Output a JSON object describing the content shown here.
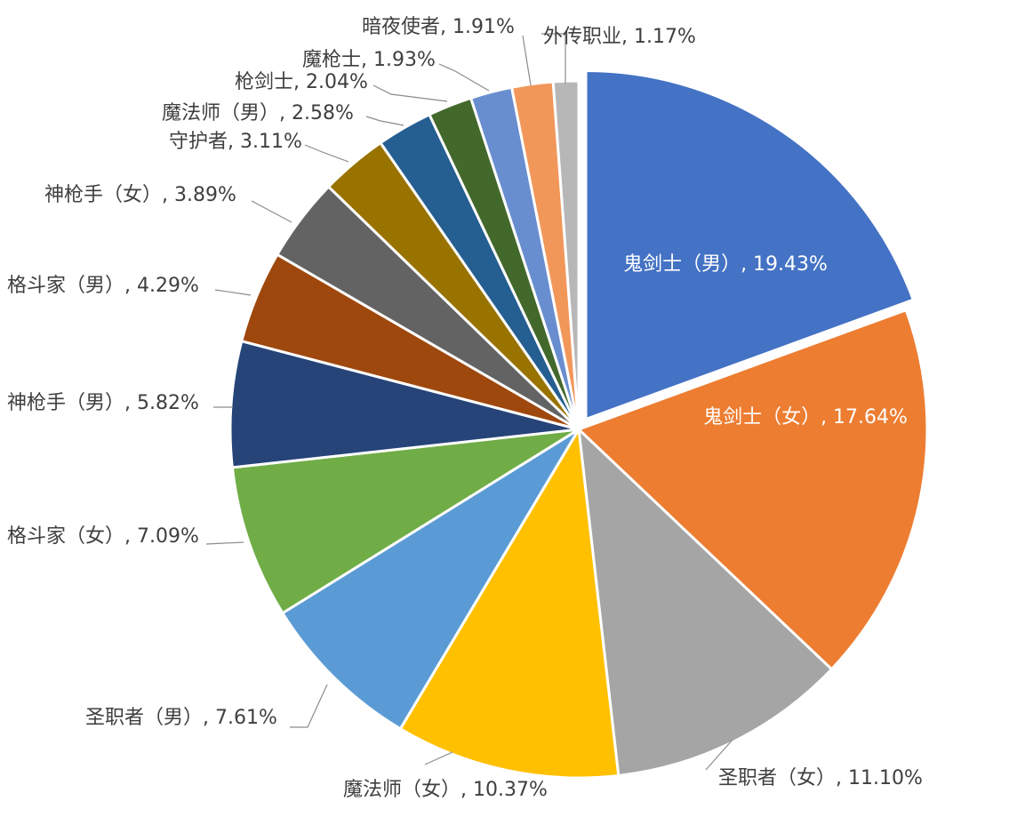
{
  "chart_data": {
    "type": "pie",
    "title": "",
    "legend": "none",
    "slices": [
      {
        "name": "鬼剑士（男）",
        "value": 19.43,
        "label": "鬼剑士（男）, 19.43%",
        "color": "#4472C4",
        "exploded": true,
        "label_inside": true
      },
      {
        "name": "鬼剑士（女）",
        "value": 17.64,
        "label": "鬼剑士（女）, 17.64%",
        "color": "#ED7D31",
        "label_inside": true
      },
      {
        "name": "圣职者（女）",
        "value": 11.1,
        "label": "圣职者（女）, 11.10%",
        "color": "#A5A5A5"
      },
      {
        "name": "魔法师（女）",
        "value": 10.37,
        "label": "魔法师（女）, 10.37%",
        "color": "#FFC000"
      },
      {
        "name": "圣职者（男）",
        "value": 7.61,
        "label": "圣职者（男）, 7.61%",
        "color": "#5B9BD5"
      },
      {
        "name": "格斗家（女）",
        "value": 7.09,
        "label": "格斗家（女）, 7.09%",
        "color": "#70AD47"
      },
      {
        "name": "神枪手（男）",
        "value": 5.82,
        "label": "神枪手（男）, 5.82%",
        "color": "#264478"
      },
      {
        "name": "格斗家（男）",
        "value": 4.29,
        "label": "格斗家（男）, 4.29%",
        "color": "#9E480E"
      },
      {
        "name": "神枪手（女）",
        "value": 3.89,
        "label": "神枪手（女）, 3.89%",
        "color": "#636363"
      },
      {
        "name": "守护者",
        "value": 3.11,
        "label": "守护者, 3.11%",
        "color": "#997300"
      },
      {
        "name": "魔法师（男）",
        "value": 2.58,
        "label": "魔法师（男）, 2.58%",
        "color": "#255E91"
      },
      {
        "name": "枪剑士",
        "value": 2.04,
        "label": "枪剑士, 2.04%",
        "color": "#43682B"
      },
      {
        "name": "魔枪士",
        "value": 1.93,
        "label": "魔枪士, 1.93%",
        "color": "#698ED0"
      },
      {
        "name": "暗夜使者",
        "value": 1.91,
        "label": "暗夜使者, 1.91%",
        "color": "#F1975A"
      },
      {
        "name": "外传职业",
        "value": 1.17,
        "label": "外传职业, 1.17%",
        "color": "#B7B7B7"
      }
    ]
  }
}
